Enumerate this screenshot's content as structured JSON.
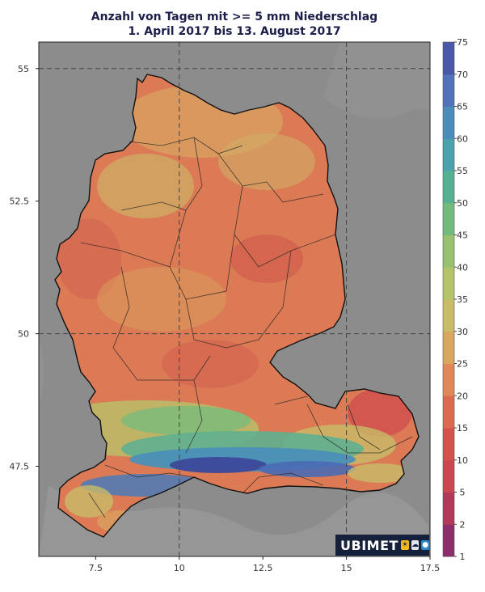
{
  "title": {
    "line1": "Anzahl von Tagen mit >= 5 mm Niederschlag",
    "line2": "1. April 2017 bis 13. August 2017"
  },
  "x_axis": {
    "ticks": [
      {
        "value": 7.5,
        "label": "7.5"
      },
      {
        "value": 10,
        "label": "10"
      },
      {
        "value": 12.5,
        "label": "12.5"
      },
      {
        "value": 15,
        "label": "15"
      },
      {
        "value": 17.5,
        "label": "17.5"
      }
    ],
    "range": [
      5.8,
      17.5
    ]
  },
  "y_axis": {
    "ticks": [
      {
        "value": 55,
        "label": "55"
      },
      {
        "value": 52.5,
        "label": "52.5"
      },
      {
        "value": 50,
        "label": "50"
      },
      {
        "value": 47.5,
        "label": "47.5"
      }
    ],
    "range": [
      45.8,
      55.5
    ]
  },
  "colorbar": {
    "labels": [
      "1",
      "2",
      "5",
      "10",
      "15",
      "20",
      "25",
      "30",
      "35",
      "40",
      "45",
      "50",
      "55",
      "60",
      "65",
      "70",
      "75"
    ],
    "colors": [
      "#8b2e6b",
      "#b2385a",
      "#cc4650",
      "#d4524c",
      "#dc6a50",
      "#e08858",
      "#d8a860",
      "#c8bc68",
      "#b4c46a",
      "#98c270",
      "#72bb7c",
      "#58b094",
      "#4aa2ac",
      "#4c8cba",
      "#5273ba",
      "#4a58a8",
      "#3c3c8c"
    ]
  },
  "logo": {
    "text": "UBIMET",
    "icons": [
      "sun-icon",
      "cloud-icon",
      "drop-icon"
    ]
  }
}
